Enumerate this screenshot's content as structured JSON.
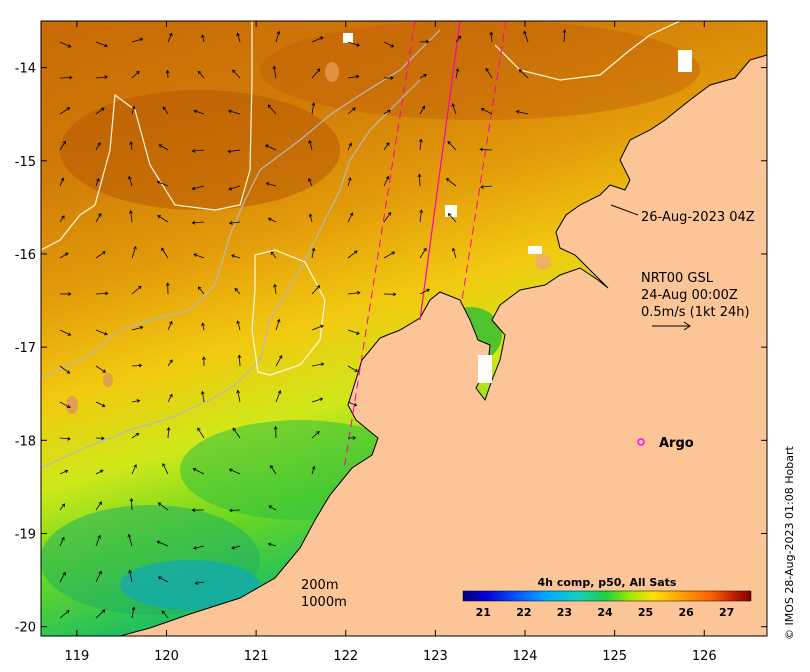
{
  "map": {
    "lon_range": [
      118.6,
      126.7
    ],
    "lat_range": [
      -20.1,
      -13.5
    ],
    "lon_ticks": [
      119,
      120,
      121,
      122,
      123,
      124,
      125,
      126
    ],
    "lat_ticks": [
      -14,
      -15,
      -16,
      -17,
      -18,
      -19,
      -20
    ],
    "land_color": "#fbc597",
    "frame_color": "#000000"
  },
  "annotations": {
    "swath_time": "26-Aug-2023 04Z",
    "current_model": "NRT00 GSL",
    "current_time": "24-Aug 00:00Z",
    "vector_scale": "0.5m/s (1kt 24h)",
    "argo_label": "Argo",
    "argo_marker_color": "#ff00ff",
    "contour_200": "200m",
    "contour_1000": "1000m"
  },
  "colorbar": {
    "title": "4h comp, p50, All Sats",
    "min": 20.5,
    "max": 27.6,
    "ticks": [
      "21",
      "22",
      "23",
      "24",
      "25",
      "26",
      "27"
    ],
    "colors": [
      "#00007f",
      "#0000d8",
      "#0040ff",
      "#00a0ff",
      "#00e0f0",
      "#10c8a0",
      "#10d040",
      "#60e000",
      "#c8f000",
      "#ffe000",
      "#ffa000",
      "#ff7000",
      "#d84000",
      "#a00000",
      "#800000"
    ]
  },
  "credit": "© IMOS 28-Aug-2023 01:08 Hobart"
}
